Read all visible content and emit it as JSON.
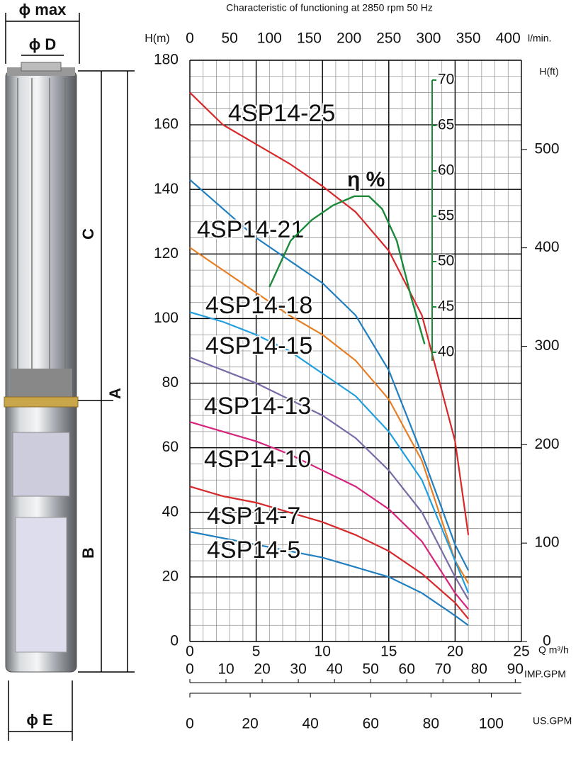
{
  "chart_data": {
    "type": "line",
    "title": "Characteristic of functioning at 2850 rpm 50 Hz",
    "y_label": "H(m)",
    "x_label": "Q m³/h",
    "x2_label": "l/min.",
    "y2_label": "H(ft)",
    "imp_label": "IMP.GPM",
    "us_label": "US.GPM",
    "x": [
      0,
      2.5,
      5,
      7.5,
      10,
      12.5,
      15,
      17.5,
      20,
      21
    ],
    "series": [
      {
        "name": "4SP14-25",
        "color": "#d7282a",
        "values": [
          170,
          160,
          154,
          148,
          141,
          133,
          121,
          101,
          62,
          33
        ]
      },
      {
        "name": "4SP14-21",
        "color": "#1f7fc0",
        "values": [
          143,
          134,
          125,
          118,
          111,
          101,
          84,
          58,
          30,
          22
        ]
      },
      {
        "name": "4SP14-18",
        "color": "#e87e24",
        "values": [
          122,
          115,
          108,
          101,
          95,
          87,
          75,
          56,
          25,
          18
        ]
      },
      {
        "name": "4SP14-15",
        "color": "#1f9fdf",
        "values": [
          102,
          99,
          95,
          90,
          83,
          76,
          65,
          50,
          25,
          15
        ]
      },
      {
        "name": "4SP14-13",
        "color": "#7a6aa8",
        "values": [
          88,
          84,
          80,
          75,
          70,
          63,
          53,
          40,
          20,
          13
        ]
      },
      {
        "name": "4SP14-10",
        "color": "#d6237c",
        "values": [
          68,
          65,
          62,
          58,
          53,
          48,
          41,
          31,
          15,
          10
        ]
      },
      {
        "name": "4SP14-7",
        "color": "#d7282a",
        "values": [
          48,
          45,
          43,
          40,
          37,
          33,
          28,
          21,
          12,
          7
        ]
      },
      {
        "name": "4SP14-5",
        "color": "#1f7fc0",
        "values": [
          34,
          32,
          30,
          28,
          26,
          23,
          20,
          15,
          8,
          5
        ]
      }
    ],
    "efficiency": {
      "name": "η %",
      "color": "#1a8a3a",
      "x": [
        6,
        7.6,
        9.2,
        10.8,
        12.4,
        13.5,
        14.5,
        15.6,
        16.7,
        17.7
      ],
      "values": [
        47.2,
        52.3,
        54.6,
        56.2,
        57.2,
        57.2,
        55.8,
        52.3,
        46,
        40.9
      ],
      "lim": [
        40,
        70
      ],
      "ticks": [
        40,
        45,
        50,
        55,
        60,
        65,
        70
      ]
    },
    "xlim": [
      0,
      25
    ],
    "xticks": [
      0,
      5,
      10,
      15,
      20,
      25
    ],
    "ylim": [
      0,
      180
    ],
    "yticks": [
      0,
      20,
      40,
      60,
      80,
      100,
      120,
      140,
      160,
      180
    ],
    "x2lim": [
      0,
      416.7
    ],
    "x2ticks": [
      0,
      50,
      100,
      150,
      200,
      250,
      300,
      350,
      400
    ],
    "y2lim": [
      0,
      590.6
    ],
    "y2ticks": [
      0,
      100,
      200,
      300,
      400,
      500
    ],
    "implim": [
      0,
      91.7
    ],
    "impticks": [
      0,
      10,
      20,
      30,
      40,
      50,
      60,
      70,
      80,
      90
    ],
    "uslim": [
      0,
      110
    ],
    "usticks": [
      0,
      20,
      40,
      60,
      80,
      100
    ],
    "x_minor_step": 1,
    "y_minor_step": 5,
    "grid": true
  },
  "pump": {
    "max": "ϕ max",
    "d": "ϕ D",
    "c": "C",
    "a": "A",
    "b": "B",
    "e": "ϕ E"
  }
}
